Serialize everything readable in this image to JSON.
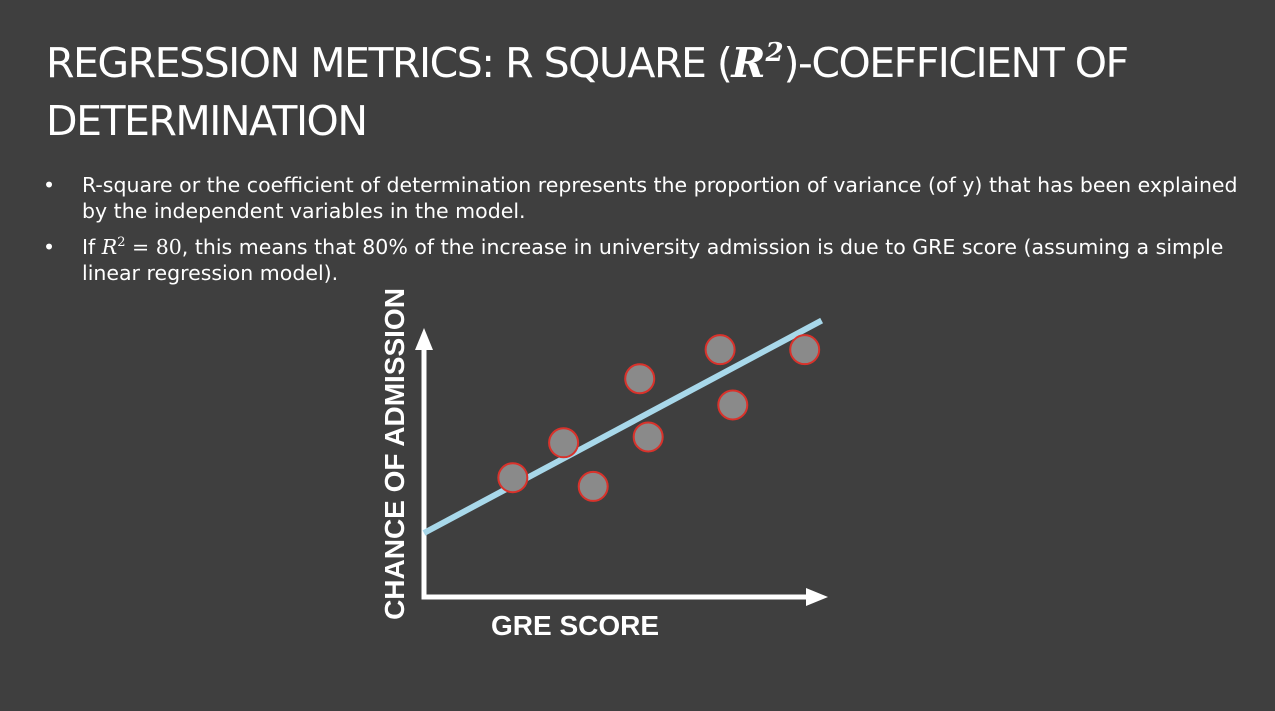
{
  "title": {
    "text_before": "REGRESSION METRICS: R SQUARE (",
    "math_symbol": "R",
    "math_exponent": "2",
    "text_after": ")-COEFFICIENT OF DETERMINATION"
  },
  "bullets": {
    "marker": "•",
    "items": [
      {
        "text": "R-square or the coefficient of determination represents the proportion of variance (of y) that has been explained by the independent variables in the model."
      },
      {
        "prefix": "If ",
        "math_symbol": "R",
        "math_exponent": "2",
        "math_rest": " = 80",
        "suffix": ", this means that 80% of the increase in university admission is due to GRE score (assuming a simple linear regression model)."
      }
    ]
  },
  "diagram": {
    "x_axis_label": "GRE SCORE",
    "y_axis_label": "CHANCE OF ADMISSION",
    "colors": {
      "axis": "#ffffff",
      "regression_line": "#a8d8ea",
      "point_fill": "#8a8a8a",
      "point_stroke": "#d9322b"
    },
    "chart_data": {
      "type": "scatter",
      "title": "",
      "xlabel": "GRE SCORE",
      "ylabel": "CHANCE OF ADMISSION",
      "xlim": [
        0,
        10
      ],
      "ylim": [
        0,
        10
      ],
      "grid": false,
      "points": [
        {
          "x": 2.1,
          "y": 4.1
        },
        {
          "x": 3.3,
          "y": 5.3
        },
        {
          "x": 4.0,
          "y": 3.8
        },
        {
          "x": 5.1,
          "y": 7.5
        },
        {
          "x": 5.3,
          "y": 5.5
        },
        {
          "x": 7.0,
          "y": 8.5
        },
        {
          "x": 7.3,
          "y": 6.6
        },
        {
          "x": 9.0,
          "y": 8.5
        }
      ],
      "regression_line": {
        "x1": 0,
        "y1": 2.2,
        "x2": 9.4,
        "y2": 9.5
      }
    }
  }
}
